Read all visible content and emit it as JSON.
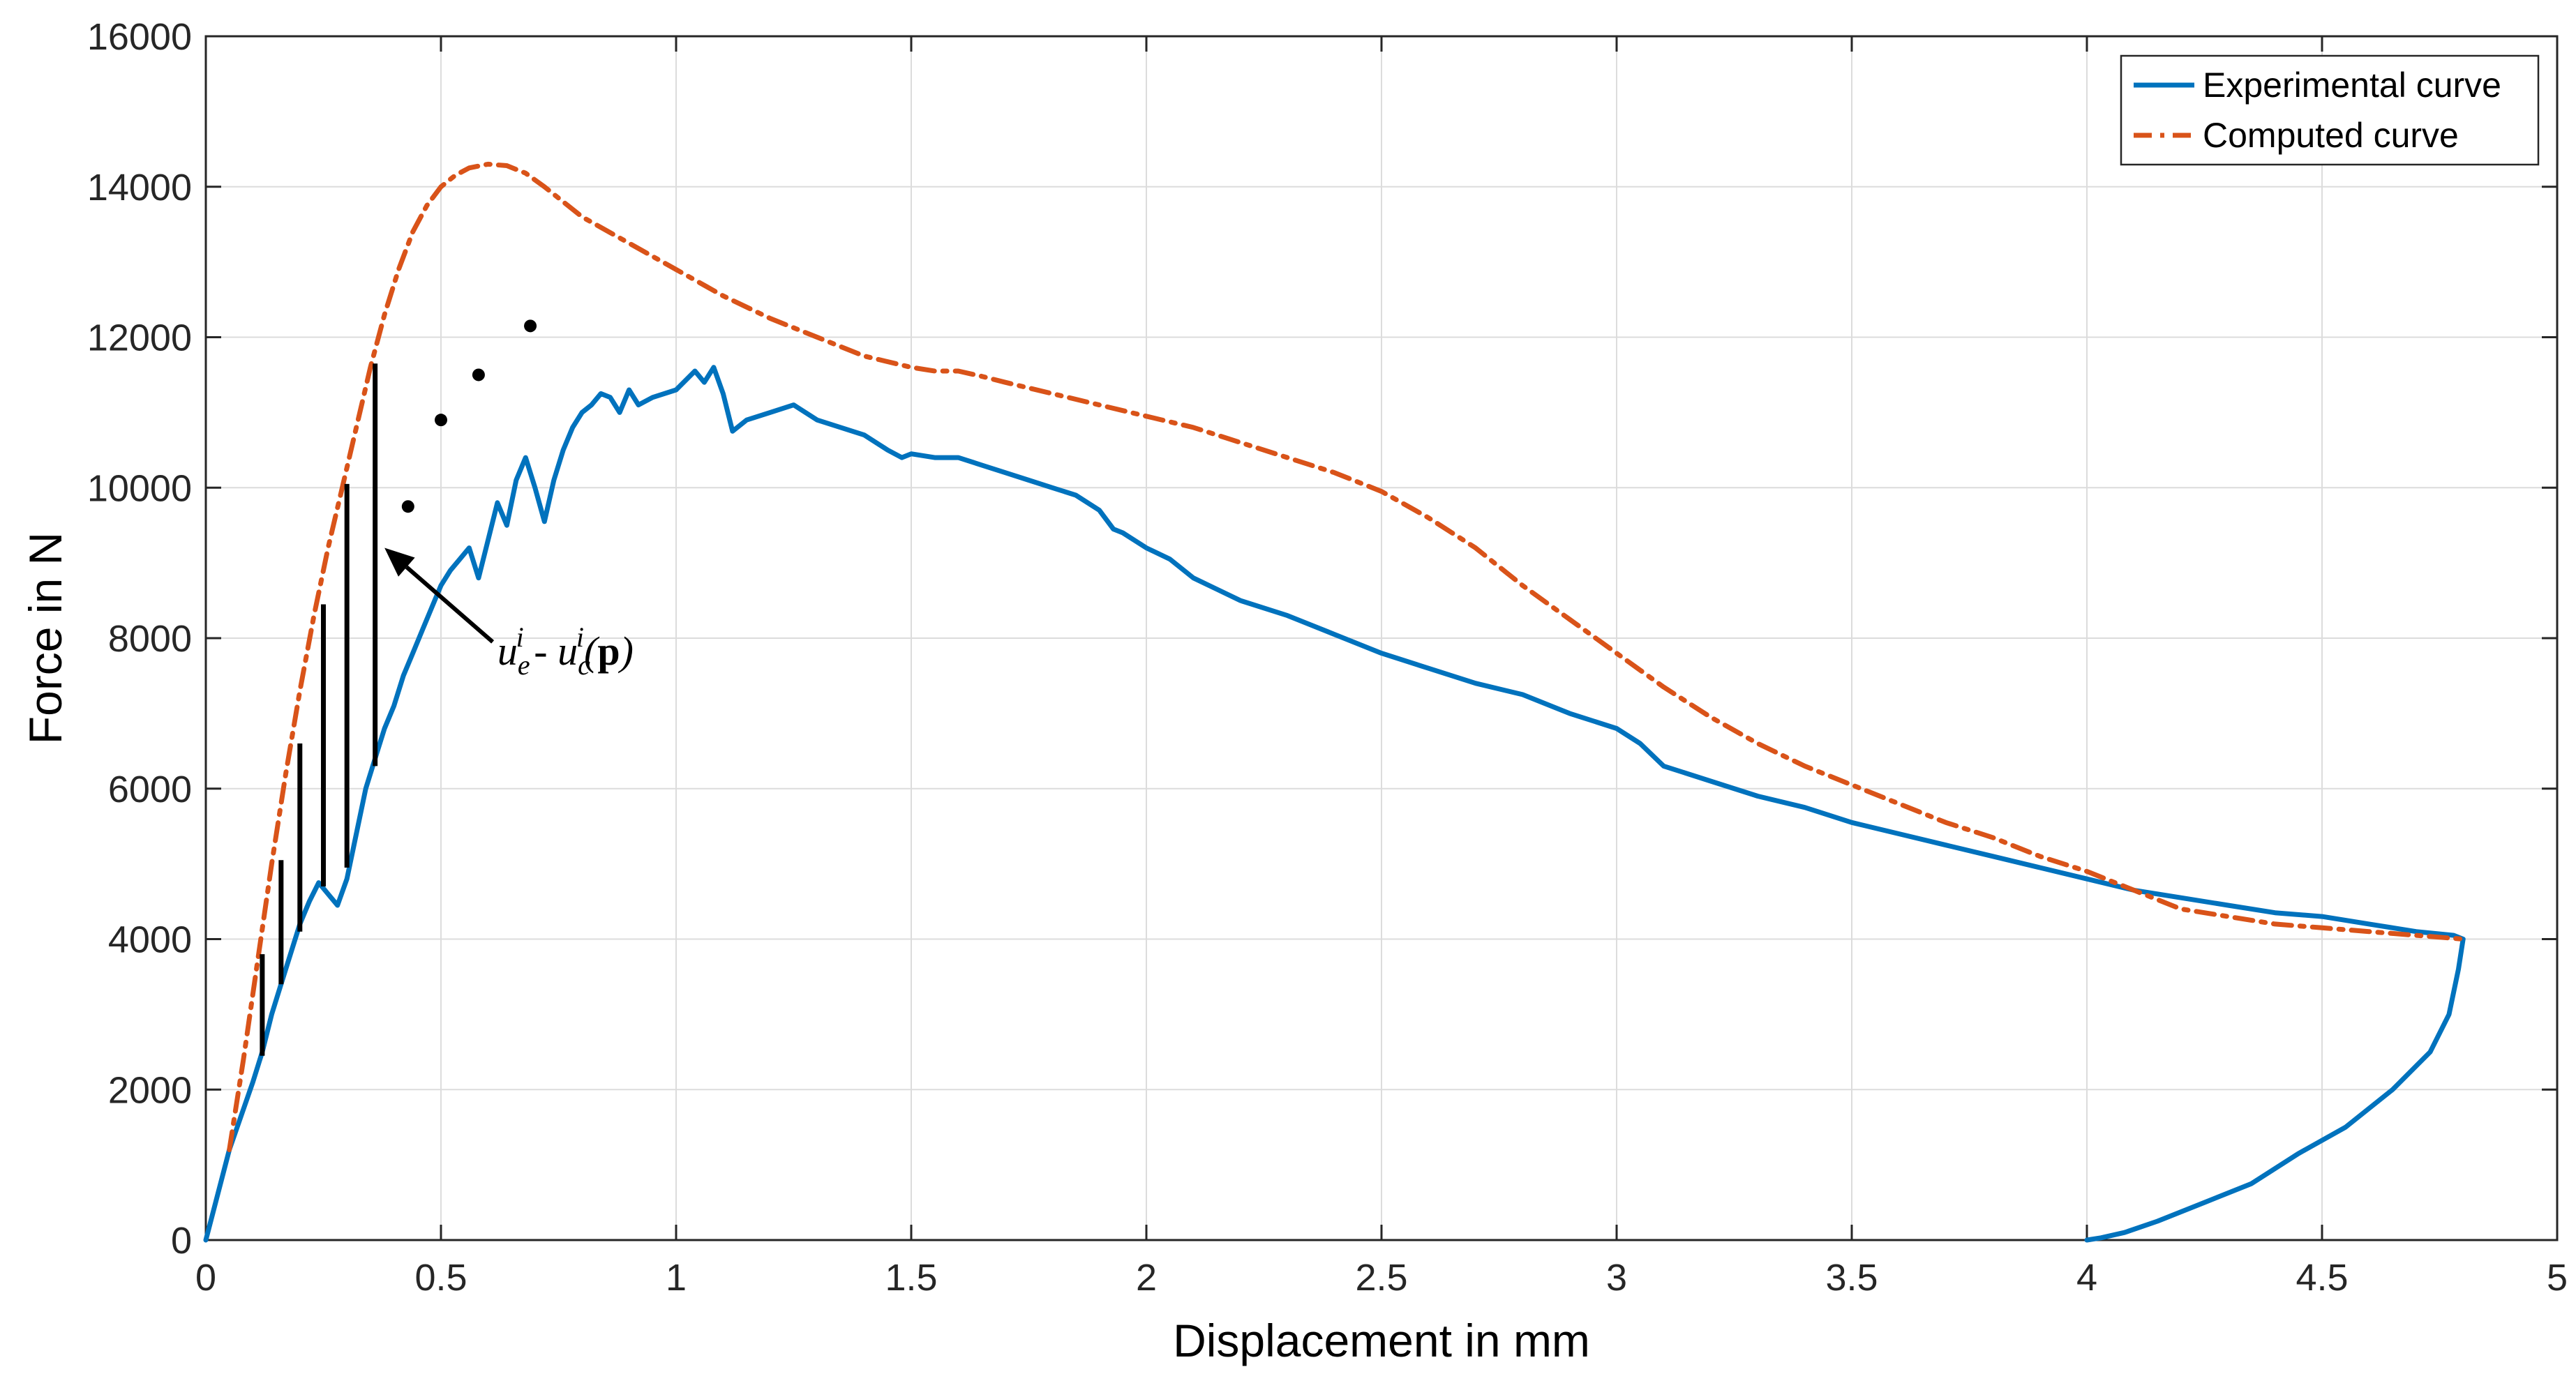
{
  "chart_data": {
    "type": "line",
    "title": "",
    "xlabel": "Displacement in mm",
    "ylabel": "Force in N",
    "xlim": [
      0,
      5
    ],
    "ylim": [
      0,
      16000
    ],
    "grid": true,
    "x_ticks": [
      0,
      0.5,
      1,
      1.5,
      2,
      2.5,
      3,
      3.5,
      4,
      4.5,
      5
    ],
    "x_tick_labels": [
      "0",
      "0.5",
      "1",
      "1.5",
      "2",
      "2.5",
      "3",
      "3.5",
      "4",
      "4.5",
      "5"
    ],
    "y_ticks": [
      0,
      2000,
      4000,
      6000,
      8000,
      10000,
      12000,
      14000,
      16000
    ],
    "y_tick_labels": [
      "0",
      "2000",
      "4000",
      "6000",
      "8000",
      "10000",
      "12000",
      "14000",
      "16000"
    ],
    "legend_position": "top-right",
    "series": [
      {
        "name": "Experimental curve",
        "color": "#0072BD",
        "style": "solid",
        "x": [
          0,
          0.05,
          0.1,
          0.12,
          0.14,
          0.16,
          0.18,
          0.2,
          0.22,
          0.24,
          0.26,
          0.28,
          0.3,
          0.32,
          0.34,
          0.36,
          0.38,
          0.4,
          0.42,
          0.44,
          0.46,
          0.48,
          0.5,
          0.52,
          0.54,
          0.56,
          0.58,
          0.6,
          0.62,
          0.64,
          0.66,
          0.68,
          0.7,
          0.72,
          0.74,
          0.76,
          0.78,
          0.8,
          0.82,
          0.84,
          0.86,
          0.88,
          0.9,
          0.92,
          0.95,
          1.0,
          1.04,
          1.06,
          1.08,
          1.1,
          1.12,
          1.15,
          1.2,
          1.25,
          1.3,
          1.35,
          1.4,
          1.45,
          1.48,
          1.5,
          1.55,
          1.6,
          1.65,
          1.7,
          1.75,
          1.8,
          1.85,
          1.9,
          1.93,
          1.95,
          2.0,
          2.05,
          2.1,
          2.15,
          2.2,
          2.3,
          2.4,
          2.5,
          2.6,
          2.7,
          2.8,
          2.9,
          3.0,
          3.05,
          3.1,
          3.2,
          3.3,
          3.4,
          3.5,
          3.6,
          3.7,
          3.8,
          3.9,
          4.0,
          4.1,
          4.2,
          4.3,
          4.4,
          4.5,
          4.6,
          4.7,
          4.78,
          4.8,
          4.79,
          4.77,
          4.73,
          4.65,
          4.55,
          4.45,
          4.35,
          4.25,
          4.15,
          4.08,
          4.03,
          4.0
        ],
        "y": [
          0,
          1200,
          2100,
          2500,
          3000,
          3400,
          3800,
          4200,
          4500,
          4750,
          4600,
          4450,
          4800,
          5400,
          6000,
          6400,
          6800,
          7100,
          7500,
          7800,
          8100,
          8400,
          8700,
          8900,
          9050,
          9200,
          8800,
          9300,
          9800,
          9500,
          10100,
          10400,
          10000,
          9550,
          10100,
          10500,
          10800,
          11000,
          11100,
          11250,
          11200,
          11000,
          11300,
          11100,
          11200,
          11300,
          11550,
          11400,
          11600,
          11250,
          10750,
          10900,
          11000,
          11100,
          10900,
          10800,
          10700,
          10500,
          10400,
          10450,
          10400,
          10400,
          10300,
          10200,
          10100,
          10000,
          9900,
          9700,
          9450,
          9400,
          9200,
          9050,
          8800,
          8650,
          8500,
          8300,
          8050,
          7800,
          7600,
          7400,
          7250,
          7000,
          6800,
          6600,
          6300,
          6100,
          5900,
          5750,
          5550,
          5400,
          5250,
          5100,
          4950,
          4800,
          4650,
          4550,
          4450,
          4350,
          4300,
          4200,
          4100,
          4050,
          4000,
          3600,
          3000,
          2500,
          2000,
          1500,
          1150,
          750,
          500,
          250,
          100,
          30,
          0
        ]
      },
      {
        "name": "Computed curve",
        "color": "#D95319",
        "style": "dashdot",
        "x": [
          0.05,
          0.08,
          0.11,
          0.14,
          0.17,
          0.2,
          0.23,
          0.26,
          0.29,
          0.32,
          0.35,
          0.38,
          0.41,
          0.44,
          0.47,
          0.5,
          0.53,
          0.56,
          0.6,
          0.64,
          0.68,
          0.72,
          0.8,
          0.9,
          1.0,
          1.1,
          1.2,
          1.3,
          1.4,
          1.5,
          1.55,
          1.6,
          1.65,
          1.7,
          1.8,
          1.9,
          2.0,
          2.1,
          2.2,
          2.3,
          2.4,
          2.5,
          2.6,
          2.7,
          2.8,
          2.9,
          3.0,
          3.1,
          3.2,
          3.3,
          3.4,
          3.5,
          3.6,
          3.7,
          3.8,
          3.9,
          4.0,
          4.1,
          4.2,
          4.3,
          4.4,
          4.5,
          4.6,
          4.7,
          4.8
        ],
        "y": [
          1200,
          2400,
          3700,
          5000,
          6200,
          7300,
          8300,
          9200,
          10000,
          10800,
          11600,
          12300,
          12900,
          13400,
          13750,
          14000,
          14150,
          14250,
          14300,
          14280,
          14180,
          14000,
          13600,
          13250,
          12900,
          12550,
          12250,
          12000,
          11750,
          11600,
          11550,
          11550,
          11480,
          11400,
          11250,
          11100,
          10950,
          10800,
          10600,
          10400,
          10200,
          9950,
          9600,
          9200,
          8700,
          8250,
          7800,
          7350,
          6950,
          6600,
          6300,
          6050,
          5800,
          5550,
          5350,
          5100,
          4900,
          4650,
          4400,
          4300,
          4200,
          4150,
          4100,
          4050,
          4000
        ]
      }
    ],
    "difference_bars": [
      {
        "x": 0.12,
        "y_low": 2450,
        "y_high": 3800
      },
      {
        "x": 0.16,
        "y_low": 3400,
        "y_high": 5050
      },
      {
        "x": 0.2,
        "y_low": 4100,
        "y_high": 6600
      },
      {
        "x": 0.25,
        "y_low": 4700,
        "y_high": 8450
      },
      {
        "x": 0.3,
        "y_low": 4950,
        "y_high": 10050
      },
      {
        "x": 0.36,
        "y_low": 6300,
        "y_high": 11650
      }
    ],
    "dots": [
      {
        "x": 0.43,
        "y": 9750
      },
      {
        "x": 0.5,
        "y": 10900
      },
      {
        "x": 0.58,
        "y": 11500
      },
      {
        "x": 0.69,
        "y": 12150
      }
    ],
    "annotation": {
      "text_u1": "u",
      "sub1": "e",
      "sup1": "i",
      "text_minus": " - ",
      "text_u2": "u",
      "sub2": "c",
      "sup2": "i",
      "text_p_open": "(",
      "text_p": "p",
      "text_p_close": ")",
      "arrow_from": {
        "x": 0.61,
        "y": 7950
      },
      "arrow_to": {
        "x": 0.38,
        "y": 9200
      },
      "text_at": {
        "x": 0.62,
        "y": 7650
      }
    }
  }
}
